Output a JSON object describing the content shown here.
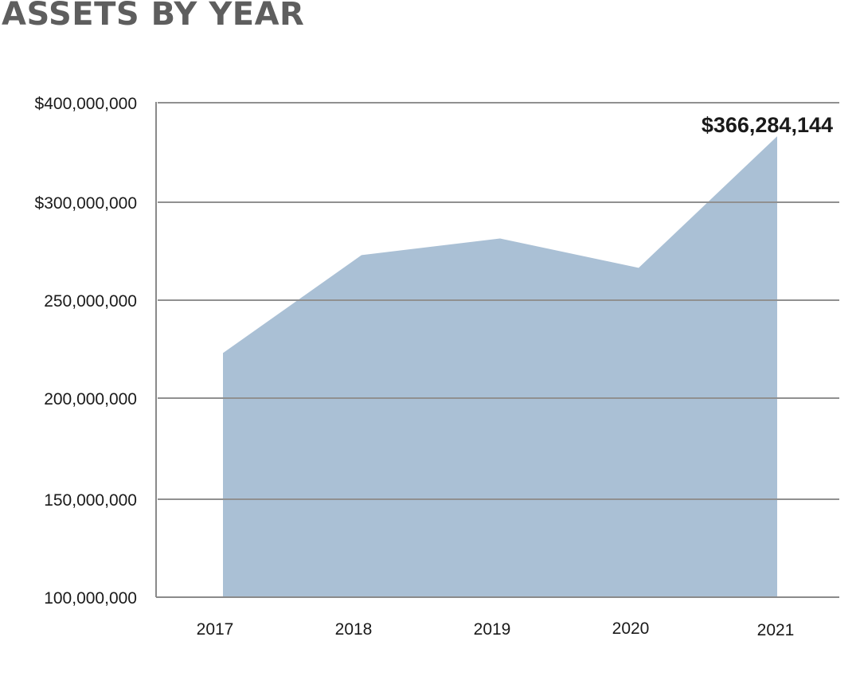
{
  "title": "ASSETS BY YEAR",
  "colors": {
    "area": "#aac0d5",
    "grid": "#909090",
    "axis": "#8a8a8a",
    "title": "#5e5e5e",
    "text": "#1a1a1a"
  },
  "chart_data": {
    "type": "area",
    "title": "ASSETS BY YEAR",
    "xlabel": "",
    "ylabel": "",
    "categories": [
      "2017",
      "2018",
      "2019",
      "2020",
      "2021"
    ],
    "values": [
      223000000,
      273000000,
      281500000,
      266500000,
      366284144
    ],
    "y_tick_values": [
      100000000,
      150000000,
      200000000,
      250000000,
      300000000,
      400000000
    ],
    "y_tick_labels": [
      "100,000,000",
      "150,000,000",
      "200,000,000",
      "250,000,000",
      "$300,000,000",
      "$400,000,000"
    ],
    "annotations": [
      {
        "category": "2021",
        "value": 366284144,
        "text": "$366,284,144"
      }
    ],
    "grid": true,
    "legend": "none"
  }
}
